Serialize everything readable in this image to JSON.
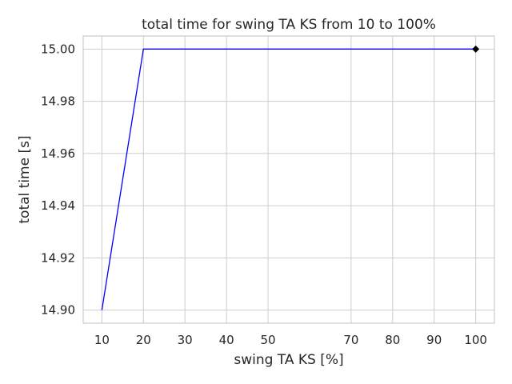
{
  "chart_data": {
    "type": "line",
    "title": "total time for swing TA KS from 10 to 100%",
    "xlabel": "swing TA KS [%]",
    "ylabel": "total time [s]",
    "x": [
      10,
      20,
      30,
      40,
      50,
      70,
      80,
      90,
      100
    ],
    "series": [
      {
        "values": [
          14.9,
          15.0,
          15.0,
          15.0,
          15.0,
          15.0,
          15.0,
          15.0,
          15.0
        ],
        "color": "#0000ff"
      }
    ],
    "marker": {
      "x": 100,
      "y": 15.0,
      "shape": "diamond",
      "color": "#000000"
    },
    "xticks": [
      10,
      20,
      30,
      40,
      50,
      70,
      80,
      90,
      100
    ],
    "xtick_labels": [
      "10",
      "20",
      "30",
      "40",
      "50",
      "70",
      "80",
      "90",
      "100"
    ],
    "yticks": [
      14.9,
      14.92,
      14.94,
      14.96,
      14.98,
      15.0
    ],
    "ytick_labels": [
      "14.90",
      "14.92",
      "14.94",
      "14.96",
      "14.98",
      "15.00"
    ],
    "xlim": [
      5.5,
      104.5
    ],
    "ylim": [
      14.895,
      15.005
    ],
    "grid": true,
    "legend": "none",
    "colors": {
      "grid": "#cccccc",
      "axes_edge": "#cccccc",
      "text": "#262626"
    }
  }
}
